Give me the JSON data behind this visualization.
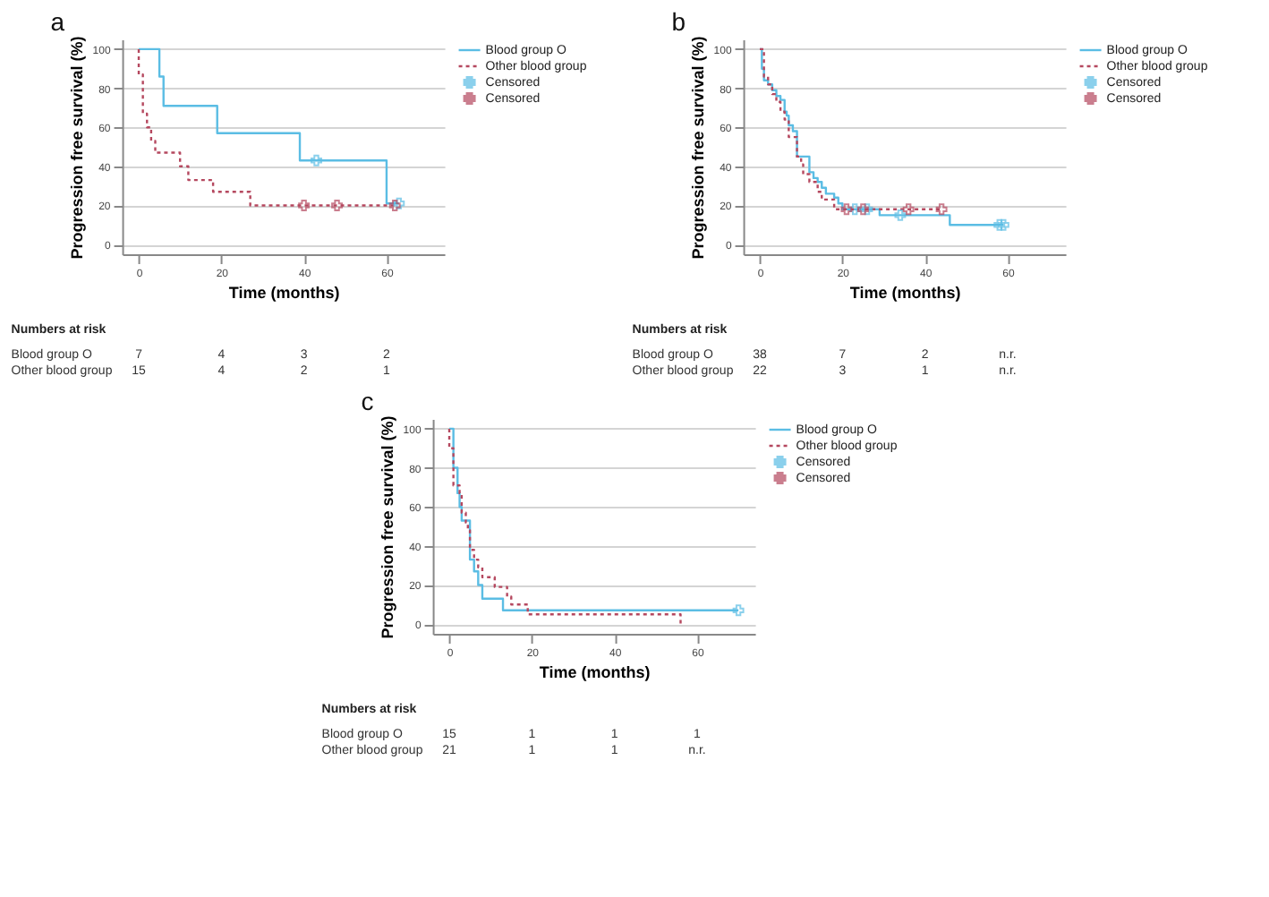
{
  "chart_data": [
    {
      "type": "step",
      "title": "a",
      "xlabel": "Time (months)",
      "ylabel": "Progression free survival (%)",
      "xlim": [
        -4,
        74
      ],
      "xticks": [
        0,
        20,
        40,
        60
      ],
      "ylim": [
        -5,
        105
      ],
      "yticks": [
        0,
        20,
        40,
        60,
        80,
        100
      ],
      "grid": "y",
      "legend": "top right",
      "series": [
        {
          "name": "Blood group O",
          "color": "#5bbde4",
          "line_style": "solid",
          "x": [
            0,
            5,
            6,
            19,
            39,
            60,
            63
          ],
          "values": [
            100,
            86,
            71,
            57,
            43,
            21,
            21
          ]
        },
        {
          "name": "Other blood group",
          "color": "#b5485f",
          "line_style": "dotted",
          "x": [
            0,
            0,
            1,
            2,
            3,
            4,
            10,
            12,
            18,
            27,
            62
          ],
          "values": [
            100,
            87,
            67,
            60,
            53,
            47,
            40,
            33,
            27,
            20,
            20
          ]
        },
        {
          "name": "Censored",
          "color": "#5bbde4",
          "type": "scatter",
          "marker": "cross",
          "x": [
            43,
            63
          ],
          "values": [
            43,
            21
          ]
        },
        {
          "name": "Censored",
          "color": "#b5485f",
          "type": "scatter",
          "marker": "cross",
          "x": [
            40,
            48,
            62
          ],
          "values": [
            20,
            20,
            20
          ]
        }
      ],
      "annotations": [
        "Numbers at risk",
        "Blood group O",
        "7",
        "4",
        "3",
        "2",
        "Other blood group",
        "15",
        "4",
        "2",
        "1"
      ]
    },
    {
      "type": "step",
      "title": "b",
      "xlabel": "Time (months)",
      "ylabel": "Progression free survival (%)",
      "xlim": [
        -4,
        74
      ],
      "xticks": [
        0,
        20,
        40,
        60
      ],
      "ylim": [
        -5,
        105
      ],
      "yticks": [
        0,
        20,
        40,
        60,
        80,
        100
      ],
      "grid": "y",
      "legend": "top right",
      "series": [
        {
          "name": "Blood group O",
          "color": "#5bbde4",
          "line_style": "solid",
          "x": [
            0,
            0.5,
            1,
            2,
            3,
            4,
            5,
            6,
            6.5,
            7,
            8,
            9,
            12,
            13,
            14,
            15,
            16,
            18,
            19,
            20,
            29,
            46,
            59
          ],
          "values": [
            100,
            90,
            84,
            82,
            79,
            76,
            74,
            68,
            66,
            61,
            58,
            45,
            37,
            34,
            32,
            29,
            26,
            24,
            21,
            18,
            15,
            10,
            10
          ]
        },
        {
          "name": "Other blood group",
          "color": "#b5485f",
          "line_style": "dotted",
          "x": [
            0,
            1,
            2,
            3,
            4,
            5,
            6,
            7,
            9,
            10,
            10.5,
            12,
            14,
            15,
            18,
            44
          ],
          "values": [
            100,
            86,
            82,
            77,
            73,
            68,
            64,
            55,
            45,
            41,
            36,
            32,
            27,
            23,
            18,
            18
          ]
        },
        {
          "name": "Censored",
          "color": "#5bbde4",
          "type": "scatter",
          "marker": "cross",
          "x": [
            23,
            26,
            34,
            58,
            59
          ],
          "values": [
            18,
            18,
            15,
            10,
            10
          ]
        },
        {
          "name": "Censored",
          "color": "#b5485f",
          "type": "scatter",
          "marker": "cross",
          "x": [
            21,
            25,
            36,
            44
          ],
          "values": [
            18,
            18,
            18,
            18
          ]
        }
      ],
      "annotations": [
        "Numbers at risk",
        "Blood group O",
        "38",
        "7",
        "2",
        "n.r.",
        "Other blood group",
        "22",
        "3",
        "1",
        "n.r."
      ]
    },
    {
      "type": "step",
      "title": "c",
      "xlabel": "Time (months)",
      "ylabel": "Progression free survival (%)",
      "xlim": [
        -4,
        74
      ],
      "xticks": [
        0,
        20,
        40,
        60
      ],
      "ylim": [
        -5,
        105
      ],
      "yticks": [
        0,
        20,
        40,
        60,
        80,
        100
      ],
      "grid": "y",
      "legend": "top right",
      "series": [
        {
          "name": "Blood group O",
          "color": "#5bbde4",
          "line_style": "solid",
          "x": [
            0,
            1,
            2,
            2.5,
            3,
            5,
            6,
            7,
            8,
            13,
            70
          ],
          "values": [
            100,
            80,
            67,
            60,
            53,
            33,
            27,
            20,
            13,
            7,
            7
          ]
        },
        {
          "name": "Other blood group",
          "color": "#b5485f",
          "line_style": "dotted",
          "x": [
            0,
            0,
            1,
            2.5,
            3,
            4,
            4.5,
            5,
            6,
            7,
            8,
            11,
            14,
            15,
            19,
            56,
            56
          ],
          "values": [
            100,
            90,
            71,
            67,
            57,
            52,
            48,
            38,
            33,
            29,
            24,
            19,
            14,
            10,
            5,
            5,
            0
          ]
        },
        {
          "name": "Censored",
          "color": "#5bbde4",
          "type": "scatter",
          "marker": "cross",
          "x": [
            70
          ],
          "values": [
            7
          ]
        },
        {
          "name": "Censored",
          "color": "#b5485f",
          "type": "scatter",
          "marker": "cross"
        }
      ],
      "annotations": [
        "Numbers at risk",
        "Blood group O",
        "15",
        "1",
        "1",
        "1",
        "Other blood group",
        "21",
        "1",
        "1",
        "n.r."
      ]
    }
  ]
}
